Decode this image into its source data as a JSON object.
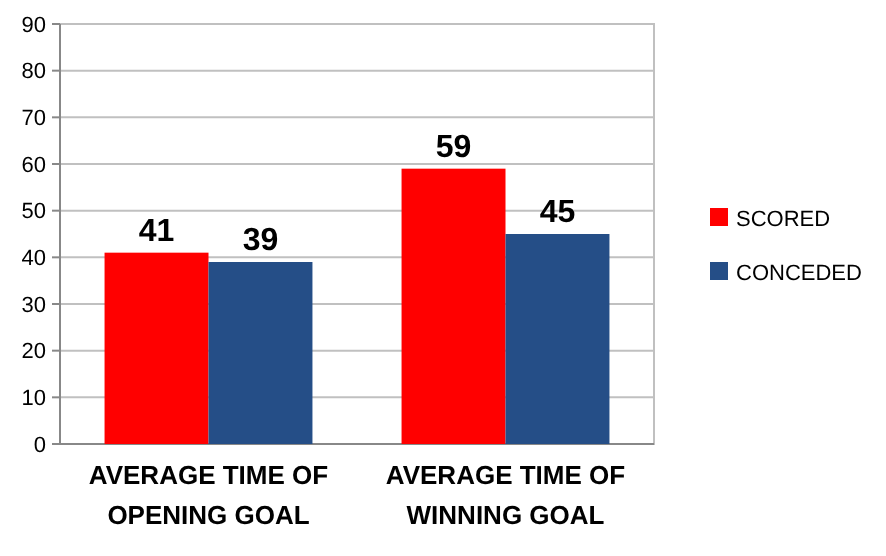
{
  "chart_data": {
    "type": "bar",
    "categories": [
      "AVERAGE TIME OF\nOPENING GOAL",
      "AVERAGE TIME OF\nWINNING GOAL"
    ],
    "series": [
      {
        "name": "SCORED",
        "color": "#ff0000",
        "values": [
          41,
          59
        ]
      },
      {
        "name": "CONCEDED",
        "color": "#254e87",
        "values": [
          39,
          45
        ]
      }
    ],
    "ylim": [
      0,
      90
    ],
    "yticks": [
      0,
      10,
      20,
      30,
      40,
      50,
      60,
      70,
      80,
      90
    ],
    "grid": "y",
    "legend": "right",
    "data_labels": true
  }
}
